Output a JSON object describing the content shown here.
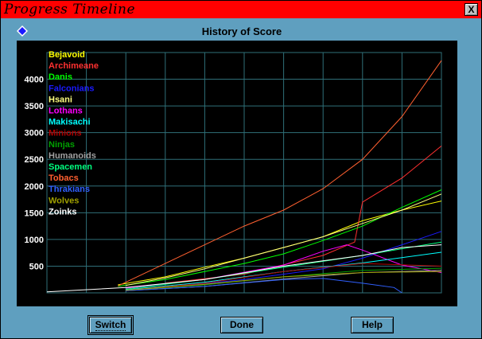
{
  "window": {
    "title": "Progress Timeline",
    "close_label": "X"
  },
  "chart_data": {
    "type": "line",
    "title": "History of Score",
    "xlim": [
      2400,
      2500
    ],
    "ylim": [
      0,
      4500
    ],
    "x_ticks": [
      "2400",
      "2410",
      "2420",
      "2430",
      "2440",
      "2450",
      "2460",
      "2470",
      "2480",
      "2490",
      "2500"
    ],
    "y_ticks": [
      "500",
      "1000",
      "1500",
      "2000",
      "2500",
      "3000",
      "3500",
      "4000"
    ],
    "grid": true,
    "legend_placement": "top-left",
    "series": [
      {
        "name": "Bejavoid",
        "color": "#ffff00",
        "x": [
          2418,
          2430,
          2440,
          2450,
          2460,
          2470,
          2480,
          2490,
          2500
        ],
        "values": [
          150,
          300,
          480,
          650,
          850,
          1050,
          1350,
          1550,
          1720
        ]
      },
      {
        "name": "Archimeane",
        "color": "#ff3030",
        "x": [
          2430,
          2450,
          2470,
          2478,
          2480,
          2490,
          2500
        ],
        "values": [
          180,
          350,
          700,
          950,
          1700,
          2150,
          2750
        ]
      },
      {
        "name": "Danis",
        "color": "#00ff00",
        "x": [
          2418,
          2430,
          2440,
          2450,
          2460,
          2470,
          2480,
          2490,
          2500
        ],
        "values": [
          120,
          250,
          400,
          550,
          730,
          980,
          1250,
          1600,
          1930
        ]
      },
      {
        "name": "Falconians",
        "color": "#1a1aff",
        "x": [
          2430,
          2450,
          2470,
          2480,
          2490,
          2500
        ],
        "values": [
          100,
          250,
          450,
          650,
          900,
          1150
        ]
      },
      {
        "name": "Hsani",
        "color": "#ffff80",
        "x": [
          2420,
          2430,
          2440,
          2450,
          2460,
          2470,
          2480,
          2490,
          2500
        ],
        "values": [
          140,
          280,
          450,
          650,
          850,
          1050,
          1300,
          1550,
          1850
        ]
      },
      {
        "name": "Lothans",
        "color": "#ff00ff",
        "x": [
          2420,
          2440,
          2460,
          2470,
          2476,
          2480,
          2490,
          2500
        ],
        "values": [
          90,
          250,
          520,
          780,
          900,
          800,
          520,
          380
        ]
      },
      {
        "name": "Makisachi",
        "color": "#00ffff",
        "x": [
          2420,
          2440,
          2460,
          2480,
          2500
        ],
        "values": [
          60,
          200,
          400,
          560,
          760
        ]
      },
      {
        "name": "Minions",
        "color": "#b00000",
        "x": [
          2420,
          2440,
          2460,
          2480,
          2500
        ],
        "values": [
          50,
          180,
          400,
          550,
          500
        ]
      },
      {
        "name": "Ninjas",
        "color": "#00a000",
        "x": [
          2420,
          2440,
          2460,
          2480,
          2500
        ],
        "values": [
          50,
          150,
          300,
          420,
          460
        ]
      },
      {
        "name": "Humanoids",
        "color": "#a0a0a0",
        "x": [
          2420,
          2440,
          2460,
          2480,
          2500
        ],
        "values": [
          40,
          120,
          260,
          380,
          420
        ]
      },
      {
        "name": "Spacemen",
        "color": "#00ff80",
        "x": [
          2420,
          2440,
          2460,
          2480,
          2500
        ],
        "values": [
          70,
          250,
          480,
          700,
          950
        ]
      },
      {
        "name": "Tobacs",
        "color": "#ff6030",
        "x": [
          2418,
          2430,
          2440,
          2450,
          2460,
          2470,
          2480,
          2490,
          2500
        ],
        "values": [
          130,
          550,
          900,
          1250,
          1550,
          1950,
          2500,
          3300,
          4350
        ]
      },
      {
        "name": "Thrakians",
        "color": "#3060ff",
        "x": [
          2420,
          2440,
          2460,
          2470,
          2480,
          2488,
          2490
        ],
        "values": [
          40,
          120,
          250,
          270,
          180,
          100,
          0
        ]
      },
      {
        "name": "Wolves",
        "color": "#a0a000",
        "x": [
          2420,
          2440,
          2460,
          2480,
          2500
        ],
        "values": [
          50,
          160,
          300,
          380,
          400
        ]
      },
      {
        "name": "Zoinks",
        "color": "#ffffff",
        "x": [
          2400,
          2420,
          2440,
          2460,
          2480,
          2490,
          2500
        ],
        "values": [
          20,
          100,
          250,
          500,
          700,
          850,
          900
        ]
      }
    ]
  },
  "buttons": {
    "switch": "Switch",
    "done": "Done",
    "help": "Help"
  }
}
